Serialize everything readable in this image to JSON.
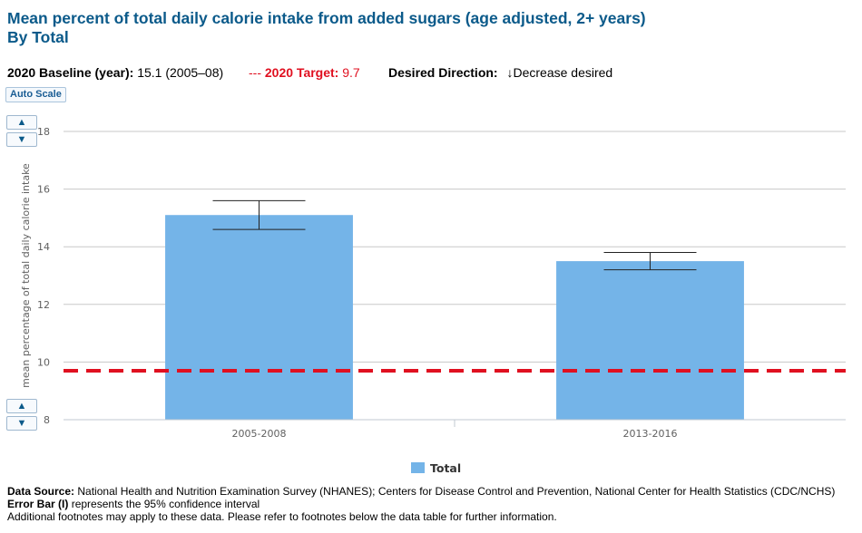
{
  "header": {
    "title": "Mean percent of total daily calorie intake from added sugars (age adjusted, 2+ years)",
    "subtitle": "By Total"
  },
  "meta": {
    "baseline_label": "2020 Baseline (year):",
    "baseline_value": "15.1 (2005–08)",
    "target_marker": "---",
    "target_label": "2020 Target:",
    "target_value": "9.7",
    "direction_label": "Desired Direction:",
    "direction_value": "↓Decrease desired"
  },
  "controls": {
    "auto_scale": "Auto Scale",
    "up_glyph": "▲",
    "down_glyph": "▼"
  },
  "chart_data": {
    "type": "bar",
    "categories": [
      "2005-2008",
      "2013-2016"
    ],
    "series": [
      {
        "name": "Total",
        "values": [
          15.1,
          13.5
        ],
        "ci_low": [
          14.6,
          13.2
        ],
        "ci_high": [
          15.6,
          13.8
        ],
        "color": "#74b4e8"
      }
    ],
    "target": 9.7,
    "target_color": "#e01020",
    "ylabel": "mean percentage of total daily calorie intake",
    "ylim": [
      8,
      18
    ],
    "yticks": [
      "8",
      "10",
      "12",
      "14",
      "16",
      "18"
    ],
    "grid": true,
    "legend_position": "bottom-center"
  },
  "footer": {
    "source_label": "Data Source:",
    "source_text": "National Health and Nutrition Examination Survey (NHANES); Centers for Disease Control and Prevention, National Center for Health Statistics (CDC/NCHS)",
    "error_label": "Error Bar (I)",
    "error_text": "represents the 95% confidence interval",
    "note": "Additional footnotes may apply to these data. Please refer to footnotes below the data table for further information."
  }
}
